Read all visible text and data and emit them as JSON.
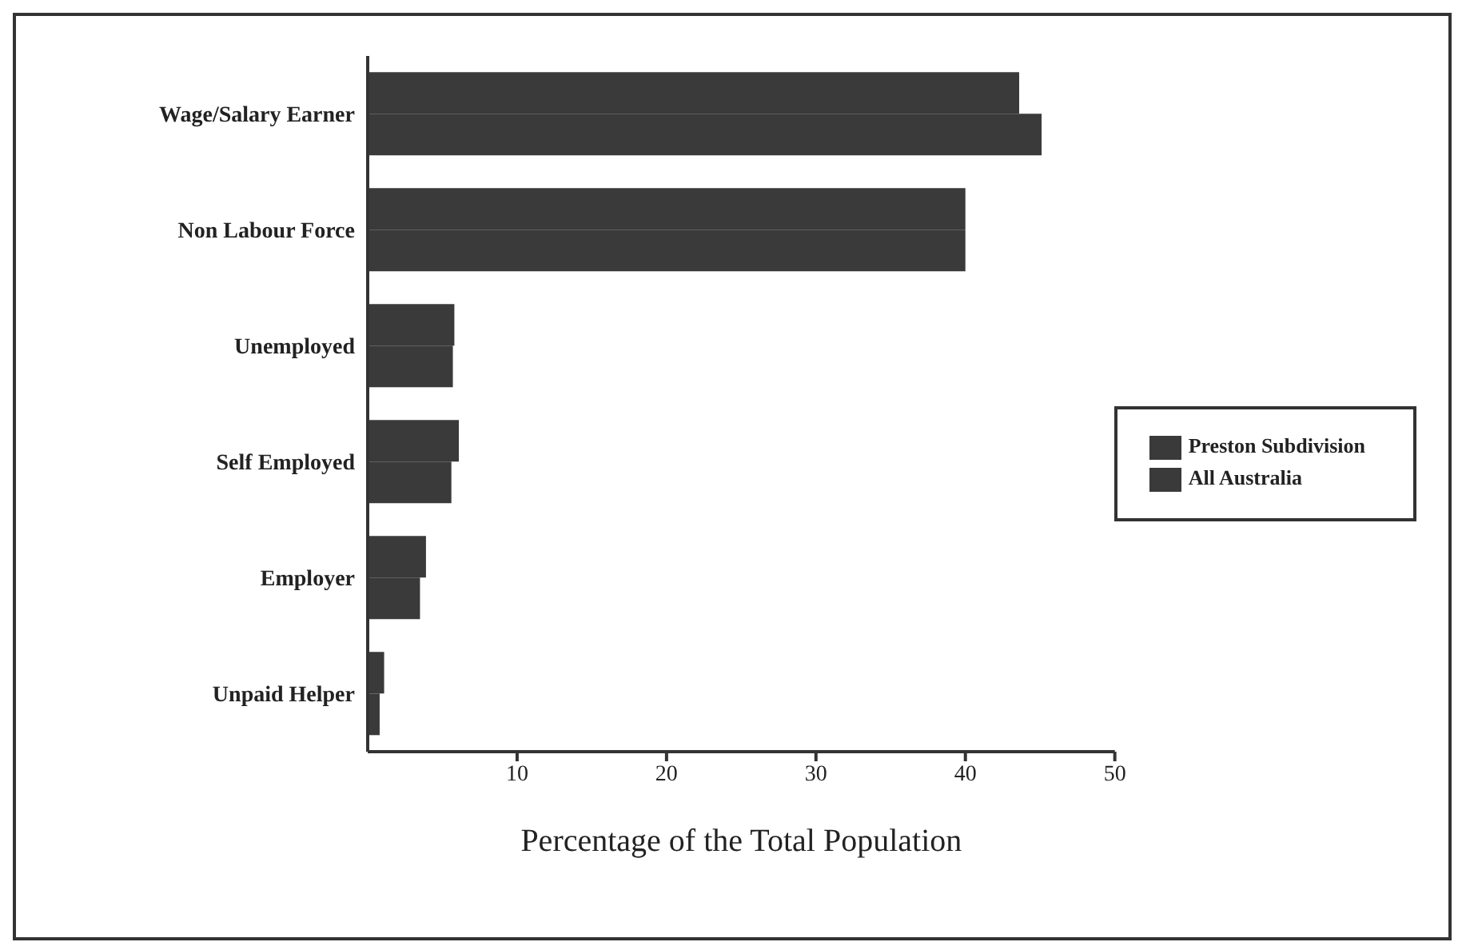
{
  "chart_data": {
    "type": "bar",
    "orientation": "horizontal",
    "categories": [
      "Wage/Salary Earner",
      "Non Labour Force",
      "Unemployed",
      "Self Employed",
      "Employer",
      "Unpaid Helper"
    ],
    "series": [
      {
        "name": "Preston Subdivision",
        "color": "#3a3a3a",
        "values": [
          43.6,
          40.0,
          5.8,
          6.1,
          3.9,
          1.1
        ]
      },
      {
        "name": "All Australia",
        "color": "#3a3a3a",
        "values": [
          45.1,
          40.0,
          5.7,
          5.6,
          3.5,
          0.8
        ]
      }
    ],
    "xlabel": "Percentage of the Total Population",
    "xlim": [
      0,
      50
    ],
    "xticks": [
      10,
      20,
      30,
      40,
      50
    ],
    "grid": false,
    "legend": "right"
  }
}
